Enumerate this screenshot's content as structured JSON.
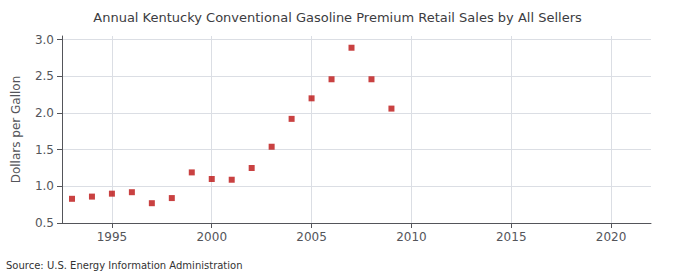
{
  "chart_data": {
    "type": "scatter",
    "title": "Annual Kentucky Conventional Gasoline Premium Retail Sales by All Sellers",
    "ylabel": "Dollars per Gallon",
    "source": "Source: U.S. Energy Information Administration",
    "x": [
      1993,
      1994,
      1995,
      1996,
      1997,
      1998,
      1999,
      2000,
      2001,
      2002,
      2003,
      2004,
      2005,
      2006,
      2007,
      2008,
      2009
    ],
    "values": [
      0.83,
      0.86,
      0.9,
      0.92,
      0.77,
      0.84,
      1.19,
      1.1,
      1.09,
      1.25,
      1.54,
      1.92,
      2.2,
      2.46,
      2.89,
      2.46,
      2.06
    ],
    "color": "#bb1111",
    "marker": "square",
    "xlim": [
      1992.5,
      2022
    ],
    "ylim": [
      0.5,
      3.05
    ],
    "xticks": [
      1995,
      2000,
      2005,
      2010,
      2015,
      2020
    ],
    "yticks": [
      0.5,
      {
        "value": 1.0,
        "label": "1.0"
      },
      1.5,
      {
        "value": 2.0,
        "label": "2.0"
      },
      2.5,
      {
        "value": 3.0,
        "label": "3.0"
      }
    ],
    "grid": true
  }
}
